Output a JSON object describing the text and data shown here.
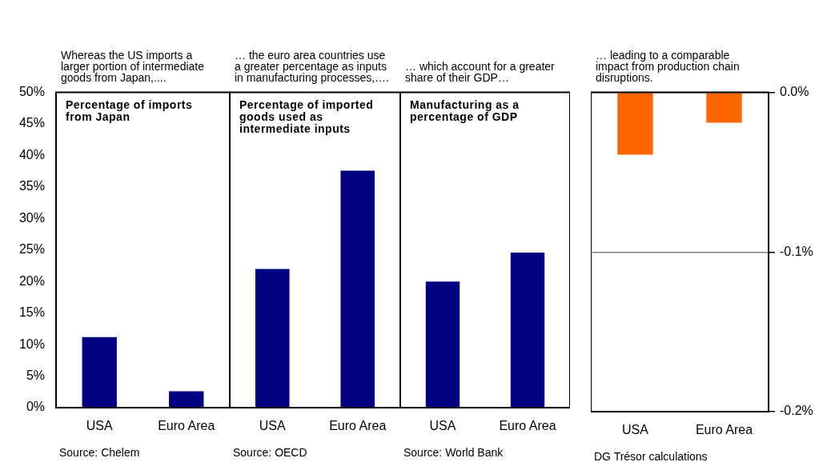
{
  "chart_data": [
    {
      "type": "bar",
      "subtitle": "Whereas the US imports a larger portion of intermediate goods from Japan,....",
      "title": "Percentage of imports from Japan",
      "categories": [
        "USA",
        "Euro Area"
      ],
      "values": [
        11.2,
        2.6
      ],
      "color": "#000080",
      "ylim": [
        0,
        50
      ],
      "yticks": [
        {
          "value": 0,
          "label": "0%"
        },
        {
          "value": 5,
          "label": "5%"
        },
        {
          "value": 10,
          "label": "10%"
        },
        {
          "value": 15,
          "label": "15%"
        },
        {
          "value": 20,
          "label": "20%"
        },
        {
          "value": 25,
          "label": "25%"
        },
        {
          "value": 30,
          "label": "30%"
        },
        {
          "value": 35,
          "label": "35%"
        },
        {
          "value": 40,
          "label": "40%"
        },
        {
          "value": 45,
          "label": "45%"
        },
        {
          "value": 50,
          "label": "50%"
        }
      ],
      "annotations": [
        "Source: Chelem"
      ]
    },
    {
      "type": "bar",
      "subtitle": "… the euro area countries use a greater percentage as inputs in manufacturing processes,….",
      "title": "Percentage of imported goods used as intermediate inputs",
      "categories": [
        "USA",
        "Euro Area"
      ],
      "values": [
        22,
        37.6
      ],
      "color": "#000080",
      "ylim": [
        0,
        50
      ],
      "tick_labels": "x",
      "annotations": [
        "Source: OECD"
      ]
    },
    {
      "type": "bar",
      "subtitle": "… which account for a greater share of their GDP…",
      "title": "Manufacturing as a percentage of GDP",
      "categories": [
        "USA",
        "Euro Area"
      ],
      "values": [
        20,
        24.6
      ],
      "color": "#000080",
      "ylim": [
        0,
        50
      ],
      "tick_labels": "x",
      "annotations": [
        "Source: World Bank"
      ]
    },
    {
      "type": "bar",
      "subtitle": "… leading to a comparable impact from production chain disruptions.",
      "categories": [
        "USA",
        "Euro Area"
      ],
      "series": [
        {
          "color": "#ff6600",
          "values": [
            -0.039,
            -0.019
          ],
          "axis": "y2"
        }
      ],
      "y2lim": [
        -0.2,
        0
      ],
      "y2ticks": [
        {
          "value": 0,
          "label": "0.0%"
        },
        {
          "value": -0.1,
          "label": "-0.1%"
        },
        {
          "value": -0.2,
          "label": "-0.2%"
        }
      ],
      "grid": "y",
      "annotations": [
        "DG Trésor calculations"
      ]
    }
  ]
}
